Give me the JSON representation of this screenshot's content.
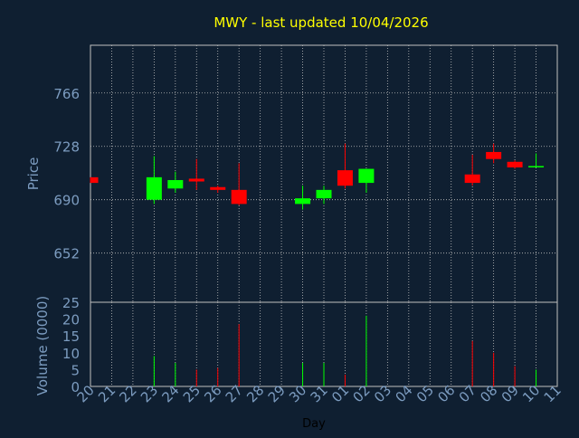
{
  "colors": {
    "background": "#0f1f31",
    "title": "#ffff00",
    "axis_text": "#7c9cc0",
    "xlabel_text": "#000000",
    "grid": "#c0c0c0",
    "frame": "#c0c0c0",
    "up": "#00ff00",
    "down": "#ff0000"
  },
  "chart_data": [
    {
      "type": "candlestick",
      "title": "MWY - last updated 10/04/2026",
      "ylabel": "Price",
      "ylim": [
        617,
        800
      ],
      "yticks": [
        652,
        690,
        728,
        766
      ],
      "grid": true,
      "categories": [
        "20",
        "21",
        "22",
        "23",
        "24",
        "25",
        "26",
        "27",
        "28",
        "29",
        "30",
        "31",
        "01",
        "02",
        "03",
        "04",
        "05",
        "06",
        "07",
        "08",
        "09",
        "10",
        "11"
      ],
      "candles": [
        {
          "x": "20",
          "open": 706,
          "close": 702,
          "high": 706,
          "low": 702
        },
        {
          "x": "23",
          "open": 690,
          "close": 706,
          "high": 721,
          "low": 687
        },
        {
          "x": "24",
          "open": 698,
          "close": 704,
          "high": 710,
          "low": 695
        },
        {
          "x": "25",
          "open": 705,
          "close": 703,
          "high": 719,
          "low": 697
        },
        {
          "x": "26",
          "open": 699,
          "close": 697,
          "high": 700,
          "low": 695
        },
        {
          "x": "27",
          "open": 697,
          "close": 687,
          "high": 716,
          "low": 686
        },
        {
          "x": "30",
          "open": 687,
          "close": 691,
          "high": 700,
          "low": 683
        },
        {
          "x": "31",
          "open": 691,
          "close": 697,
          "high": 700,
          "low": 687
        },
        {
          "x": "01",
          "open": 711,
          "close": 700,
          "high": 730,
          "low": 698
        },
        {
          "x": "02",
          "open": 702,
          "close": 712,
          "high": 712,
          "low": 695
        },
        {
          "x": "07",
          "open": 708,
          "close": 702,
          "high": 722,
          "low": 700
        },
        {
          "x": "08",
          "open": 724,
          "close": 719,
          "high": 730,
          "low": 716
        },
        {
          "x": "09",
          "open": 717,
          "close": 713,
          "high": 718,
          "low": 712
        },
        {
          "x": "10",
          "open": 713,
          "close": 714,
          "high": 723,
          "low": 713
        }
      ]
    },
    {
      "type": "bar",
      "ylabel": "Volume (0000)",
      "xlabel": "Day",
      "ylim": [
        0,
        25
      ],
      "yticks": [
        0,
        5,
        10,
        15,
        20,
        25
      ],
      "categories": [
        "20",
        "21",
        "22",
        "23",
        "24",
        "25",
        "26",
        "27",
        "28",
        "29",
        "30",
        "31",
        "01",
        "02",
        "03",
        "04",
        "05",
        "06",
        "07",
        "08",
        "09",
        "10",
        "11"
      ],
      "values": [
        {
          "x": "23",
          "value": 9,
          "direction": "up"
        },
        {
          "x": "24",
          "value": 7,
          "direction": "up"
        },
        {
          "x": "25",
          "value": 5,
          "direction": "down"
        },
        {
          "x": "26",
          "value": 5.5,
          "direction": "down"
        },
        {
          "x": "27",
          "value": 18.5,
          "direction": "down"
        },
        {
          "x": "30",
          "value": 7,
          "direction": "up"
        },
        {
          "x": "31",
          "value": 7,
          "direction": "up"
        },
        {
          "x": "01",
          "value": 3.5,
          "direction": "down"
        },
        {
          "x": "02",
          "value": 21,
          "direction": "up"
        },
        {
          "x": "07",
          "value": 13.5,
          "direction": "down"
        },
        {
          "x": "08",
          "value": 10,
          "direction": "down"
        },
        {
          "x": "09",
          "value": 6,
          "direction": "down"
        },
        {
          "x": "10",
          "value": 5,
          "direction": "up"
        }
      ]
    }
  ]
}
